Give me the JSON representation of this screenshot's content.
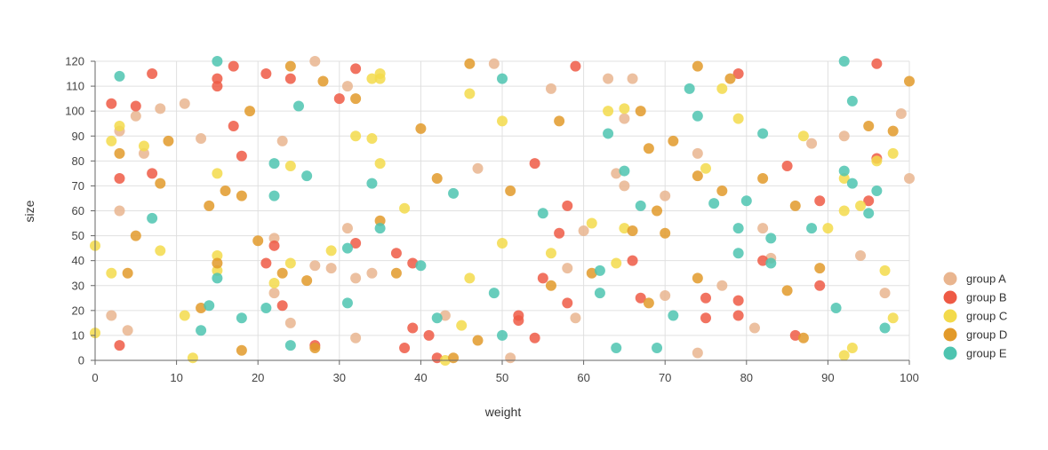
{
  "chart_data": {
    "type": "scatter",
    "title": "",
    "xlabel": "weight",
    "ylabel": "size",
    "xlim": [
      0,
      100
    ],
    "ylim": [
      0,
      120
    ],
    "x_ticks": [
      "0",
      "10",
      "20",
      "30",
      "40",
      "50",
      "60",
      "70",
      "80",
      "90",
      "100"
    ],
    "y_ticks": [
      "0",
      "10",
      "20",
      "30",
      "40",
      "50",
      "60",
      "70",
      "80",
      "90",
      "100",
      "110",
      "120"
    ],
    "grid": true,
    "legend_position": "right",
    "series": [
      {
        "name": "group A",
        "color": "#e9b58f",
        "points": [
          [
            3,
            92
          ],
          [
            2,
            18
          ],
          [
            3,
            60
          ],
          [
            4,
            12
          ],
          [
            5,
            98
          ],
          [
            6,
            83
          ],
          [
            8,
            101
          ],
          [
            11,
            103
          ],
          [
            13,
            89
          ],
          [
            22,
            49
          ],
          [
            22,
            27
          ],
          [
            23,
            88
          ],
          [
            24,
            15
          ],
          [
            27,
            120
          ],
          [
            27,
            38
          ],
          [
            29,
            37
          ],
          [
            31,
            110
          ],
          [
            31,
            53
          ],
          [
            32,
            9
          ],
          [
            32,
            33
          ],
          [
            34,
            35
          ],
          [
            43,
            18
          ],
          [
            47,
            77
          ],
          [
            49,
            119
          ],
          [
            51,
            1
          ],
          [
            56,
            109
          ],
          [
            58,
            37
          ],
          [
            59,
            17
          ],
          [
            60,
            52
          ],
          [
            63,
            113
          ],
          [
            64,
            75
          ],
          [
            65,
            97
          ],
          [
            65,
            70
          ],
          [
            66,
            113
          ],
          [
            70,
            26
          ],
          [
            70,
            66
          ],
          [
            74,
            83
          ],
          [
            74,
            3
          ],
          [
            77,
            30
          ],
          [
            81,
            13
          ],
          [
            82,
            53
          ],
          [
            83,
            41
          ],
          [
            88,
            87
          ],
          [
            92,
            90
          ],
          [
            94,
            42
          ],
          [
            97,
            27
          ],
          [
            99,
            99
          ],
          [
            100,
            73
          ]
        ]
      },
      {
        "name": "group B",
        "color": "#ee5a45",
        "points": [
          [
            2,
            103
          ],
          [
            3,
            73
          ],
          [
            3,
            6
          ],
          [
            5,
            102
          ],
          [
            7,
            115
          ],
          [
            7,
            75
          ],
          [
            15,
            113
          ],
          [
            15,
            110
          ],
          [
            17,
            118
          ],
          [
            17,
            94
          ],
          [
            18,
            82
          ],
          [
            21,
            115
          ],
          [
            21,
            39
          ],
          [
            22,
            46
          ],
          [
            23,
            22
          ],
          [
            24,
            113
          ],
          [
            27,
            6
          ],
          [
            30,
            105
          ],
          [
            32,
            117
          ],
          [
            32,
            47
          ],
          [
            37,
            43
          ],
          [
            38,
            5
          ],
          [
            39,
            13
          ],
          [
            39,
            39
          ],
          [
            41,
            10
          ],
          [
            42,
            1
          ],
          [
            52,
            16
          ],
          [
            52,
            18
          ],
          [
            54,
            79
          ],
          [
            54,
            9
          ],
          [
            55,
            33
          ],
          [
            57,
            51
          ],
          [
            58,
            62
          ],
          [
            58,
            23
          ],
          [
            59,
            118
          ],
          [
            66,
            40
          ],
          [
            67,
            25
          ],
          [
            75,
            25
          ],
          [
            75,
            17
          ],
          [
            79,
            115
          ],
          [
            79,
            24
          ],
          [
            79,
            18
          ],
          [
            82,
            40
          ],
          [
            85,
            78
          ],
          [
            86,
            10
          ],
          [
            89,
            64
          ],
          [
            89,
            30
          ],
          [
            95,
            64
          ],
          [
            96,
            119
          ],
          [
            96,
            81
          ]
        ]
      },
      {
        "name": "group C",
        "color": "#f3da4b",
        "points": [
          [
            0,
            46
          ],
          [
            0,
            11
          ],
          [
            2,
            88
          ],
          [
            2,
            35
          ],
          [
            3,
            94
          ],
          [
            6,
            86
          ],
          [
            8,
            44
          ],
          [
            11,
            18
          ],
          [
            12,
            1
          ],
          [
            15,
            75
          ],
          [
            15,
            42
          ],
          [
            15,
            36
          ],
          [
            22,
            31
          ],
          [
            24,
            39
          ],
          [
            24,
            78
          ],
          [
            29,
            44
          ],
          [
            32,
            90
          ],
          [
            34,
            113
          ],
          [
            34,
            89
          ],
          [
            35,
            115
          ],
          [
            35,
            113
          ],
          [
            35,
            79
          ],
          [
            38,
            61
          ],
          [
            43,
            0
          ],
          [
            45,
            14
          ],
          [
            46,
            107
          ],
          [
            46,
            33
          ],
          [
            50,
            96
          ],
          [
            50,
            47
          ],
          [
            56,
            43
          ],
          [
            61,
            55
          ],
          [
            63,
            100
          ],
          [
            64,
            39
          ],
          [
            65,
            101
          ],
          [
            65,
            53
          ],
          [
            75,
            77
          ],
          [
            77,
            109
          ],
          [
            79,
            97
          ],
          [
            87,
            90
          ],
          [
            90,
            53
          ],
          [
            92,
            73
          ],
          [
            92,
            60
          ],
          [
            92,
            2
          ],
          [
            93,
            5
          ],
          [
            94,
            62
          ],
          [
            96,
            80
          ],
          [
            97,
            36
          ],
          [
            98,
            83
          ],
          [
            98,
            17
          ]
        ]
      },
      {
        "name": "group D",
        "color": "#e29a2a",
        "points": [
          [
            3,
            83
          ],
          [
            4,
            35
          ],
          [
            5,
            50
          ],
          [
            8,
            71
          ],
          [
            9,
            88
          ],
          [
            13,
            21
          ],
          [
            14,
            62
          ],
          [
            15,
            39
          ],
          [
            16,
            68
          ],
          [
            18,
            66
          ],
          [
            18,
            4
          ],
          [
            19,
            100
          ],
          [
            20,
            48
          ],
          [
            23,
            35
          ],
          [
            24,
            118
          ],
          [
            26,
            32
          ],
          [
            27,
            5
          ],
          [
            28,
            112
          ],
          [
            32,
            105
          ],
          [
            35,
            56
          ],
          [
            37,
            35
          ],
          [
            40,
            93
          ],
          [
            42,
            73
          ],
          [
            44,
            1
          ],
          [
            46,
            119
          ],
          [
            47,
            8
          ],
          [
            51,
            68
          ],
          [
            56,
            30
          ],
          [
            57,
            96
          ],
          [
            61,
            35
          ],
          [
            66,
            52
          ],
          [
            67,
            100
          ],
          [
            68,
            23
          ],
          [
            68,
            85
          ],
          [
            69,
            60
          ],
          [
            70,
            51
          ],
          [
            71,
            88
          ],
          [
            74,
            118
          ],
          [
            74,
            74
          ],
          [
            74,
            33
          ],
          [
            77,
            68
          ],
          [
            78,
            113
          ],
          [
            82,
            73
          ],
          [
            85,
            28
          ],
          [
            86,
            62
          ],
          [
            87,
            9
          ],
          [
            89,
            37
          ],
          [
            95,
            94
          ],
          [
            98,
            92
          ],
          [
            100,
            112
          ]
        ]
      },
      {
        "name": "group E",
        "color": "#4ec4b0",
        "points": [
          [
            3,
            114
          ],
          [
            7,
            57
          ],
          [
            13,
            12
          ],
          [
            14,
            22
          ],
          [
            15,
            120
          ],
          [
            15,
            33
          ],
          [
            18,
            17
          ],
          [
            21,
            21
          ],
          [
            22,
            79
          ],
          [
            22,
            66
          ],
          [
            24,
            6
          ],
          [
            25,
            102
          ],
          [
            26,
            74
          ],
          [
            31,
            45
          ],
          [
            31,
            23
          ],
          [
            34,
            71
          ],
          [
            35,
            53
          ],
          [
            40,
            38
          ],
          [
            42,
            17
          ],
          [
            44,
            67
          ],
          [
            49,
            27
          ],
          [
            50,
            113
          ],
          [
            50,
            10
          ],
          [
            55,
            59
          ],
          [
            62,
            36
          ],
          [
            62,
            27
          ],
          [
            63,
            91
          ],
          [
            64,
            5
          ],
          [
            65,
            76
          ],
          [
            67,
            62
          ],
          [
            69,
            5
          ],
          [
            71,
            18
          ],
          [
            73,
            109
          ],
          [
            74,
            98
          ],
          [
            76,
            63
          ],
          [
            79,
            53
          ],
          [
            79,
            43
          ],
          [
            80,
            64
          ],
          [
            82,
            91
          ],
          [
            83,
            49
          ],
          [
            83,
            39
          ],
          [
            88,
            53
          ],
          [
            91,
            21
          ],
          [
            92,
            120
          ],
          [
            92,
            76
          ],
          [
            93,
            71
          ],
          [
            93,
            104
          ],
          [
            95,
            59
          ],
          [
            96,
            68
          ],
          [
            97,
            13
          ]
        ]
      }
    ]
  }
}
